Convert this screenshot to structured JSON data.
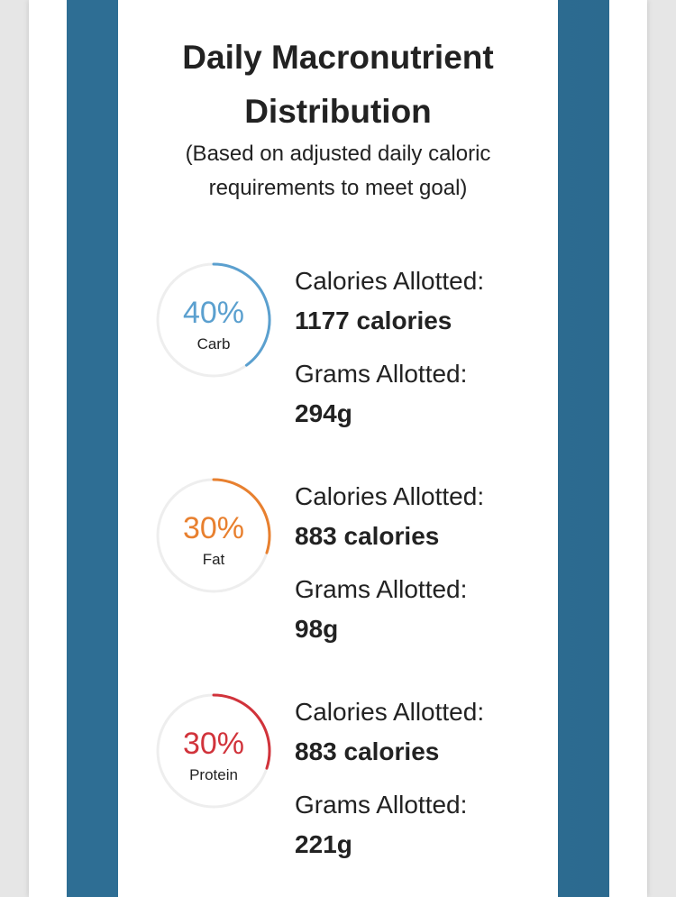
{
  "card": {
    "title_line1": "Daily Macronutrient",
    "title_line2": "Distribution",
    "subtitle_line1": "(Based on adjusted daily caloric",
    "subtitle_line2": "requirements to meet goal)"
  },
  "macros": [
    {
      "percent": 40,
      "percent_label": "40%",
      "name": "Carb",
      "color": "#5ba0cf",
      "calories_label": "Calories Allotted:",
      "calories_value": "1177 calories",
      "grams_label": "Grams Allotted:",
      "grams_value": "294g"
    },
    {
      "percent": 30,
      "percent_label": "30%",
      "name": "Fat",
      "color": "#e8802f",
      "calories_label": "Calories Allotted:",
      "calories_value": "883 calories",
      "grams_label": "Grams Allotted:",
      "grams_value": "98g"
    },
    {
      "percent": 30,
      "percent_label": "30%",
      "name": "Protein",
      "color": "#d1333b",
      "calories_label": "Calories Allotted:",
      "calories_value": "883 calories",
      "grams_label": "Grams Allotted:",
      "grams_value": "221g"
    }
  ],
  "theme": {
    "frame_blue": "#2e6e94",
    "ring_track": "#eeeeee",
    "text": "#222222"
  }
}
